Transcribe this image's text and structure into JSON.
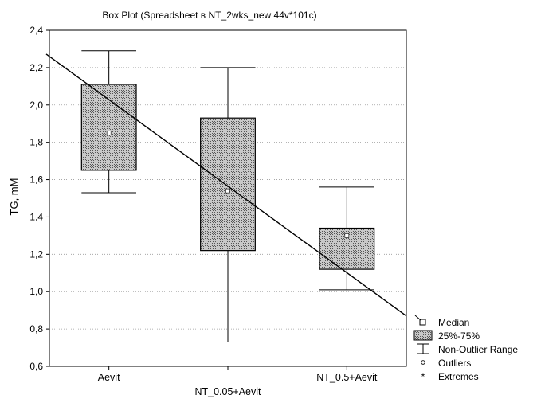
{
  "chart_data": {
    "type": "box",
    "title": "Box Plot (Spreadsheet в NT_2wks_new 44v*101c)",
    "xlabel": "",
    "ylabel": "TG, mM",
    "ylim": [
      0.6,
      2.4
    ],
    "yticks": [
      "0,6",
      "0,8",
      "1,0",
      "1,2",
      "1,4",
      "1,6",
      "1,8",
      "2,0",
      "2,2",
      "2,4"
    ],
    "grid": true,
    "categories": [
      "Aevit",
      "NT_0.05+Aevit",
      "NT_0.5+Aevit"
    ],
    "boxes": [
      {
        "category": "Aevit",
        "median": 1.85,
        "q1": 1.65,
        "q3": 2.11,
        "whisker_low": 1.53,
        "whisker_high": 2.29
      },
      {
        "category": "NT_0.05+Aevit",
        "median": 1.54,
        "q1": 1.22,
        "q3": 1.93,
        "whisker_low": 0.73,
        "whisker_high": 2.2
      },
      {
        "category": "NT_0.5+Aevit",
        "median": 1.3,
        "q1": 1.12,
        "q3": 1.34,
        "whisker_low": 1.01,
        "whisker_high": 1.56
      }
    ],
    "trend_line": {
      "y_at_left_edge": 2.26,
      "y_at_right_edge": 0.87
    },
    "legend": {
      "position": "bottom-right",
      "items": [
        {
          "symbol": "median",
          "label": "Median"
        },
        {
          "symbol": "box",
          "label": "25%-75%"
        },
        {
          "symbol": "whisker",
          "label": "Non-Outlier Range"
        },
        {
          "symbol": "outlier",
          "label": "Outliers"
        },
        {
          "symbol": "extreme",
          "label": "Extremes"
        }
      ]
    },
    "colors": {
      "box_fill": "#b4b4b4",
      "line": "#000000",
      "grid": "#9a9a9a"
    }
  }
}
